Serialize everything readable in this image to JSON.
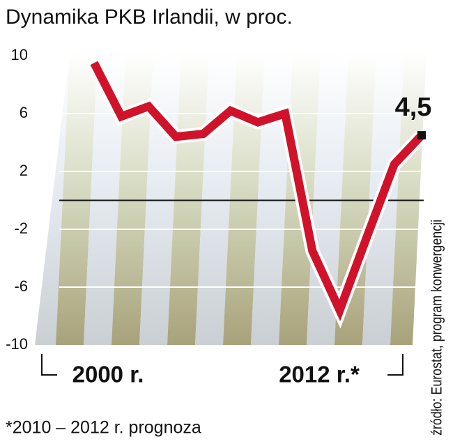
{
  "chart_data": {
    "type": "line",
    "title": "Dynamika PKB Irlandii, w proc.",
    "categories": [
      "2000 r.",
      null,
      null,
      null,
      null,
      null,
      null,
      null,
      null,
      null,
      null,
      null,
      "2012 r.*"
    ],
    "values": [
      9.5,
      5.8,
      6.5,
      4.4,
      4.6,
      6.2,
      5.4,
      6.0,
      -3.5,
      -7.6,
      -2.5,
      2.5,
      4.5
    ],
    "value_labels": [
      null,
      null,
      null,
      null,
      null,
      null,
      null,
      null,
      null,
      null,
      null,
      null,
      "4,5"
    ],
    "color": "#d0122a",
    "ylim": [
      -10,
      10
    ],
    "yticks": [
      -10,
      -6,
      -2,
      2,
      6,
      10
    ],
    "grid": true,
    "source": "źródło: Eurostat, program konwergencji",
    "footnote": "*2010 – 2012 r. prognoza"
  }
}
